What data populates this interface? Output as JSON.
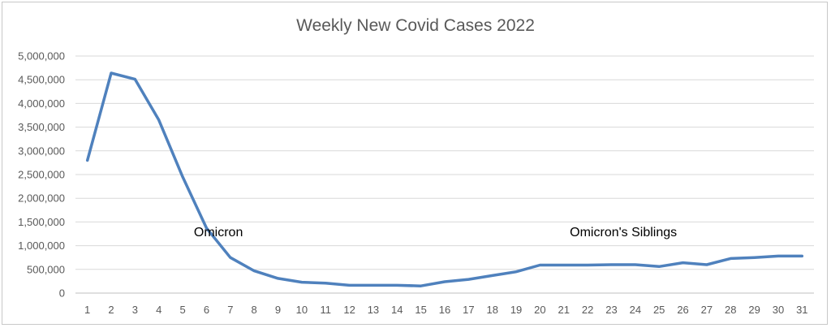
{
  "chart_data": {
    "type": "line",
    "title": "Weekly New Covid Cases 2022",
    "xlabel": "",
    "ylabel": "",
    "x": [
      1,
      2,
      3,
      4,
      5,
      6,
      7,
      8,
      9,
      10,
      11,
      12,
      13,
      14,
      15,
      16,
      17,
      18,
      19,
      20,
      21,
      22,
      23,
      24,
      25,
      26,
      27,
      28,
      29,
      30,
      31
    ],
    "series": [
      {
        "values": [
          2800000,
          4640000,
          4510000,
          3650000,
          2450000,
          1370000,
          750000,
          470000,
          310000,
          230000,
          210000,
          165000,
          165000,
          165000,
          150000,
          240000,
          290000,
          370000,
          450000,
          590000,
          590000,
          590000,
          600000,
          600000,
          560000,
          640000,
          600000,
          730000,
          750000,
          780000,
          780000
        ]
      }
    ],
    "ylim": [
      0,
      5000000
    ],
    "yticks": [
      0,
      500000,
      1000000,
      1500000,
      2000000,
      2500000,
      3000000,
      3500000,
      4000000,
      4500000,
      5000000
    ],
    "ytick_labels": [
      "0",
      "500,000",
      "1,000,000",
      "1,500,000",
      "2,000,000",
      "2,500,000",
      "3,000,000",
      "3,500,000",
      "4,000,000",
      "4,500,000",
      "5,000,000"
    ],
    "grid": true,
    "line_color": "#4f81bd",
    "annotations": [
      {
        "text": "Omicron",
        "x": 6.5,
        "y": 1250000
      },
      {
        "text": "Omicron's Siblings",
        "x": 23.5,
        "y": 1250000
      }
    ]
  }
}
